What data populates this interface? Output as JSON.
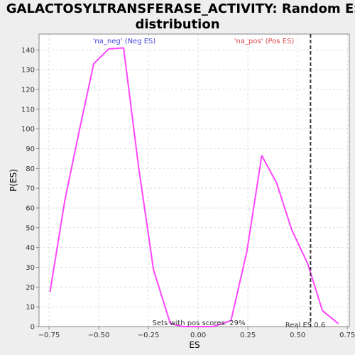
{
  "chart_data": {
    "type": "line",
    "title_line1": "GALACTOSYLTRANSFERASE_ACTIVITY: Random ES",
    "title_line2": "distribution",
    "xlabel": "ES",
    "ylabel": "P(ES)",
    "xlim": [
      -0.8,
      0.76
    ],
    "ylim": [
      0,
      148
    ],
    "xticks": [
      -0.75,
      -0.5,
      -0.25,
      0.0,
      0.25,
      0.5,
      0.75
    ],
    "xtick_labels": [
      "−0.75",
      "−0.50",
      "−0.25",
      "0.00",
      "0.25",
      "0.50",
      "0.75"
    ],
    "yticks": [
      0,
      10,
      20,
      30,
      40,
      50,
      60,
      70,
      80,
      90,
      100,
      110,
      120,
      130,
      140
    ],
    "ytick_labels": [
      "0",
      "10",
      "20",
      "30",
      "40",
      "50",
      "60",
      "70",
      "80",
      "90",
      "100",
      "110",
      "120",
      "130",
      "140"
    ],
    "grid": true,
    "series": [
      {
        "name": "random ES distribution",
        "color": "#ff44ff",
        "x": [
          -0.745,
          -0.67,
          -0.6,
          -0.525,
          -0.45,
          -0.375,
          -0.3,
          -0.225,
          -0.14,
          -0.075,
          0.0,
          0.075,
          0.165,
          0.245,
          0.32,
          0.395,
          0.47,
          0.55,
          0.625,
          0.705
        ],
        "y": [
          17.5,
          64,
          98,
          133,
          140.5,
          141,
          81,
          29,
          1.5,
          0,
          0,
          0,
          3,
          38,
          86.5,
          72.5,
          49,
          32,
          8,
          1.5
        ]
      }
    ],
    "real_es": {
      "x": 0.565,
      "label": "Real ES 0.6",
      "color": "#333333"
    },
    "annotations": {
      "neg": {
        "text": "'na_neg' (Neg ES)",
        "color": "#4444dd"
      },
      "pos": {
        "text": "'na_pos' (Pos ES)",
        "color": "#dd4444"
      },
      "pos_scores": {
        "text": "Sets with pos scores: 29%",
        "color": "#333333"
      }
    }
  }
}
